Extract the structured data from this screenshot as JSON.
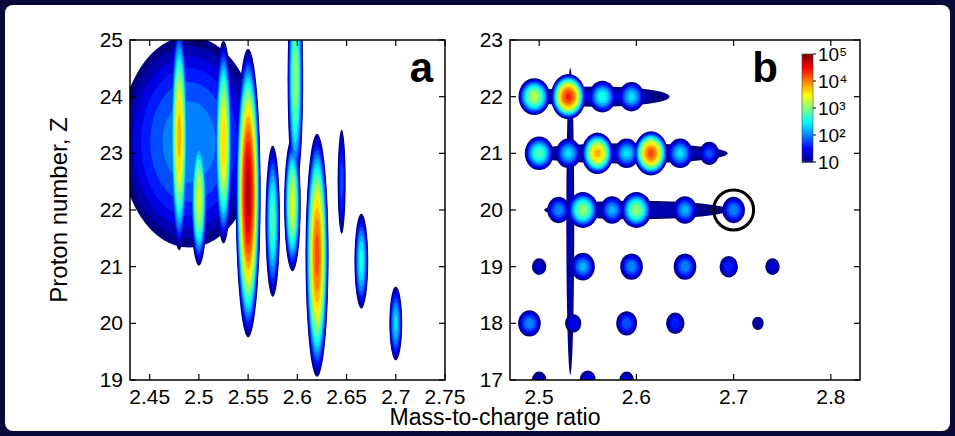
{
  "chart_data": [
    {
      "type": "scatter",
      "marker": "blob",
      "panel_label": "a",
      "x_label": "Mass-to-charge ratio",
      "y_label": "Proton number, Z",
      "xlim": [
        2.43,
        2.75
      ],
      "xticks": [
        2.45,
        2.5,
        2.55,
        2.6,
        2.65,
        2.7,
        2.75
      ],
      "ylim": [
        19,
        25
      ],
      "yticks": [
        19,
        20,
        21,
        22,
        23,
        24,
        25
      ],
      "x": [
        2.49,
        2.48,
        2.5,
        2.525,
        2.55,
        2.575,
        2.595,
        2.598,
        2.62,
        2.645,
        2.665,
        2.7
      ],
      "y": [
        23.2,
        23.3,
        22.2,
        23.2,
        22.3,
        21.8,
        22.1,
        24.3,
        21.2,
        22.5,
        21.1,
        20.0
      ],
      "counts": [
        150,
        8000,
        3000,
        6000,
        80000,
        800,
        3000,
        1500,
        20000,
        80,
        500,
        300
      ],
      "x_spread": [
        0.03,
        0.0025,
        0.0025,
        0.0025,
        0.003,
        0.0025,
        0.0025,
        0.0025,
        0.003,
        0.002,
        0.0025,
        0.0025
      ],
      "y_spread": [
        0.8,
        0.55,
        0.35,
        0.5,
        0.6,
        0.45,
        0.35,
        0.6,
        0.55,
        0.45,
        0.3,
        0.25
      ]
    },
    {
      "type": "scatter",
      "marker": "blob",
      "panel_label": "b",
      "xlim": [
        2.47,
        2.83
      ],
      "xticks": [
        2.5,
        2.6,
        2.7,
        2.8
      ],
      "ylim": [
        17,
        23
      ],
      "yticks": [
        17,
        18,
        19,
        20,
        21,
        22,
        23
      ],
      "x": [
        2.56,
        2.59,
        2.6,
        2.532,
        2.495,
        2.53,
        2.565,
        2.595,
        2.5,
        2.53,
        2.56,
        2.59,
        2.615,
        2.645,
        2.675,
        2.52,
        2.545,
        2.575,
        2.6,
        2.65,
        2.7,
        2.5,
        2.545,
        2.595,
        2.65,
        2.695,
        2.74,
        2.49,
        2.535,
        2.59,
        2.64,
        2.725,
        2.5,
        2.55,
        2.59
      ],
      "y": [
        22,
        21,
        20,
        19.8,
        22,
        22,
        22,
        22,
        21,
        21,
        21,
        21,
        21,
        21,
        21,
        20,
        20,
        20,
        20,
        20,
        20,
        19,
        19,
        19,
        19,
        19,
        19,
        18,
        18,
        18,
        18,
        18,
        17,
        17,
        17
      ],
      "counts": [
        30,
        30,
        25,
        25,
        2000,
        30000,
        500,
        300,
        800,
        300,
        8000,
        300,
        20000,
        300,
        80,
        150,
        1500,
        200,
        1500,
        200,
        150,
        30,
        200,
        150,
        150,
        60,
        30,
        150,
        40,
        100,
        60,
        20,
        30,
        40,
        30
      ],
      "x_spread": [
        0.05,
        0.07,
        0.07,
        0.003,
        0.005,
        0.0045,
        0.005,
        0.005,
        0.005,
        0.005,
        0.0045,
        0.005,
        0.0045,
        0.005,
        0.005,
        0.005,
        0.005,
        0.005,
        0.005,
        0.005,
        0.005,
        0.005,
        0.005,
        0.005,
        0.005,
        0.005,
        0.005,
        0.005,
        0.005,
        0.005,
        0.005,
        0.005,
        0.005,
        0.005,
        0.005
      ],
      "y_spread": [
        0.12,
        0.12,
        0.12,
        2.0,
        0.1,
        0.1,
        0.1,
        0.1,
        0.1,
        0.1,
        0.1,
        0.1,
        0.1,
        0.1,
        0.1,
        0.1,
        0.1,
        0.1,
        0.1,
        0.1,
        0.1,
        0.1,
        0.1,
        0.1,
        0.1,
        0.1,
        0.1,
        0.1,
        0.1,
        0.1,
        0.1,
        0.1,
        0.1,
        0.1,
        0.1
      ],
      "colorbar": {
        "range": [
          10,
          100000
        ],
        "ticks": [
          {
            "value": 100000,
            "label": "10⁵"
          },
          {
            "value": 10000,
            "label": "10⁴"
          },
          {
            "value": 1000,
            "label": "10³"
          },
          {
            "value": 100,
            "label": "10²"
          },
          10
        ]
      },
      "annotations": [
        {
          "x": 2.7,
          "y": 20,
          "marker": "circle"
        }
      ]
    }
  ]
}
